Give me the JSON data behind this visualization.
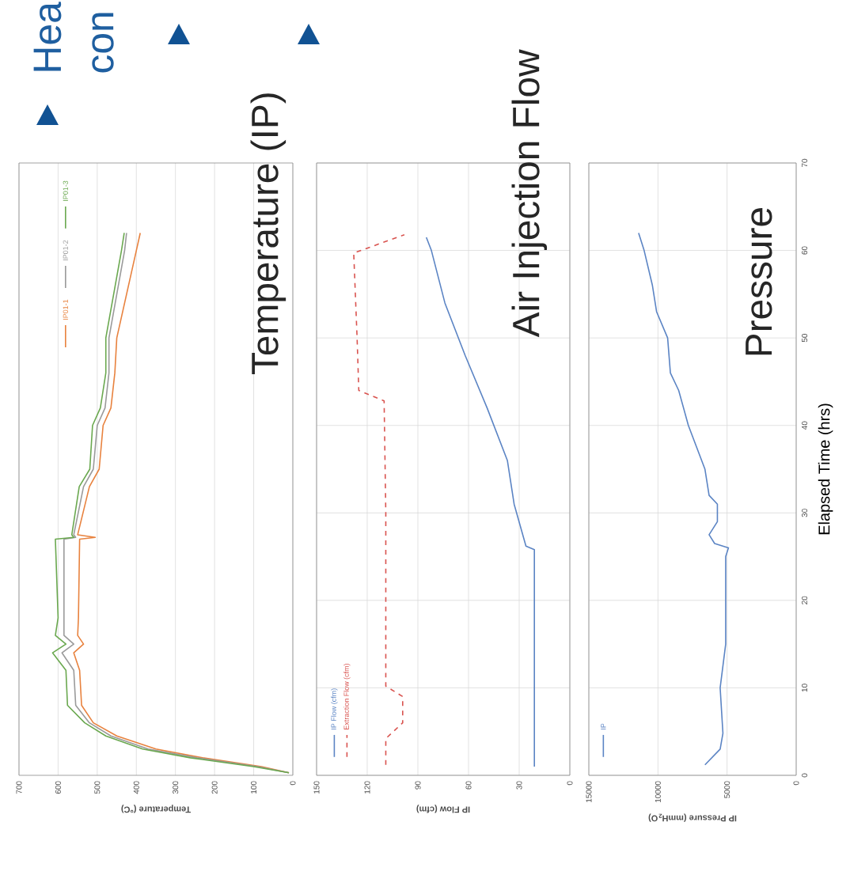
{
  "chart_data": [
    {
      "type": "line",
      "title": "Temperature (IP)",
      "xlabel": "Temperature (°C)",
      "ylim": [
        0,
        70
      ],
      "xlim": [
        700,
        0
      ],
      "xticks": [
        0,
        100,
        200,
        300,
        400,
        500,
        600,
        700
      ],
      "tick_labels": "x",
      "grid": "x",
      "legend": "top left",
      "annotations": [
        "Hea",
        "con"
      ],
      "series": [
        {
          "name": "IP01-1",
          "color": "#e8823e",
          "values": [
            0.3,
            1,
            2,
            3,
            4.5,
            6,
            8,
            12,
            14,
            15,
            16,
            18,
            27,
            27.2,
            27.5,
            33,
            35,
            40,
            42,
            46,
            50,
            55,
            60,
            62
          ],
          "x": [
            10,
            80,
            230,
            350,
            450,
            510,
            540,
            545,
            560,
            535,
            550,
            548,
            545,
            505,
            550,
            520,
            495,
            485,
            465,
            455,
            450,
            425,
            400,
            390
          ]
        },
        {
          "name": "IP01-2",
          "color": "#9a9a9a",
          "values": [
            0.3,
            1,
            2,
            3,
            4.5,
            6,
            8,
            12,
            14,
            15,
            16,
            27,
            27.2,
            27.5,
            33,
            35,
            40,
            42,
            46,
            50,
            55,
            60,
            62
          ],
          "x": [
            10,
            90,
            245,
            370,
            465,
            520,
            555,
            560,
            590,
            560,
            585,
            585,
            555,
            560,
            535,
            510,
            500,
            480,
            470,
            470,
            450,
            430,
            425
          ]
        },
        {
          "name": "IP01-3",
          "color": "#6aa84f",
          "values": [
            0.3,
            1,
            2,
            3,
            4.5,
            6,
            8,
            12,
            14,
            15,
            16,
            18,
            27,
            27.2,
            27.5,
            33,
            35,
            40,
            42,
            46,
            50,
            55,
            60,
            62
          ],
          "x": [
            10,
            100,
            262,
            384,
            478,
            532,
            576,
            580,
            614,
            580,
            607,
            600,
            607,
            560,
            565,
            546,
            519,
            512,
            492,
            478,
            478,
            458,
            438,
            431
          ]
        }
      ]
    },
    {
      "type": "line",
      "title": "Air Injection Flow",
      "xlabel": "IP Flow (cfm)",
      "ylim": [
        0,
        70
      ],
      "yticks": [
        0,
        10,
        20,
        30,
        40,
        50,
        60,
        70
      ],
      "xlim": [
        150,
        0
      ],
      "xticks": [
        0,
        30,
        60,
        90,
        120,
        150
      ],
      "tick_labels": "x",
      "grid": true,
      "legend": "bottom left",
      "series": [
        {
          "name": "IP Flow (cfm)",
          "color": "#5b84c4",
          "line_style": "solid",
          "values": [
            1,
            5,
            10,
            15,
            20,
            25.8,
            26.2,
            31,
            36,
            42,
            48,
            54,
            60,
            61.5
          ],
          "x": [
            21,
            21,
            21,
            21,
            21,
            21,
            26,
            33,
            37,
            49,
            62,
            74,
            82,
            85
          ]
        },
        {
          "name": "Extraction Flow (cfm)",
          "color": "#d9534f",
          "line_style": "dashed",
          "values": [
            1.2,
            4.2,
            6,
            9,
            10.2,
            30,
            42.8,
            44,
            50,
            59.7,
            61.8
          ],
          "x": [
            109,
            109,
            99,
            99,
            109,
            109,
            110,
            125,
            126,
            128,
            98
          ]
        }
      ]
    },
    {
      "type": "line",
      "title": "Pressure",
      "ylabel": "Elapsed Time (hrs)",
      "xlabel": "IP Pressure (mmH$_{2}$O)",
      "ylim": [
        0,
        70
      ],
      "yticks": [
        0,
        10,
        20,
        30,
        40,
        50,
        60,
        70
      ],
      "xlim": [
        15000,
        0
      ],
      "xticks": [
        0,
        5000,
        10000,
        15000
      ],
      "grid": true,
      "legend": "bottom left",
      "series": [
        {
          "name": "IP",
          "color": "#5b84c4",
          "values": [
            1.2,
            3,
            4.8,
            10,
            15,
            25,
            26,
            26.5,
            27.5,
            29,
            31,
            32,
            35,
            40,
            44,
            46,
            50,
            53,
            56,
            60,
            62
          ],
          "x": [
            6600,
            5500,
            5300,
            5500,
            5100,
            5100,
            4900,
            5900,
            6300,
            5700,
            5700,
            6300,
            6600,
            7800,
            8500,
            9100,
            9300,
            10100,
            10400,
            11000,
            11400
          ]
        }
      ]
    }
  ]
}
